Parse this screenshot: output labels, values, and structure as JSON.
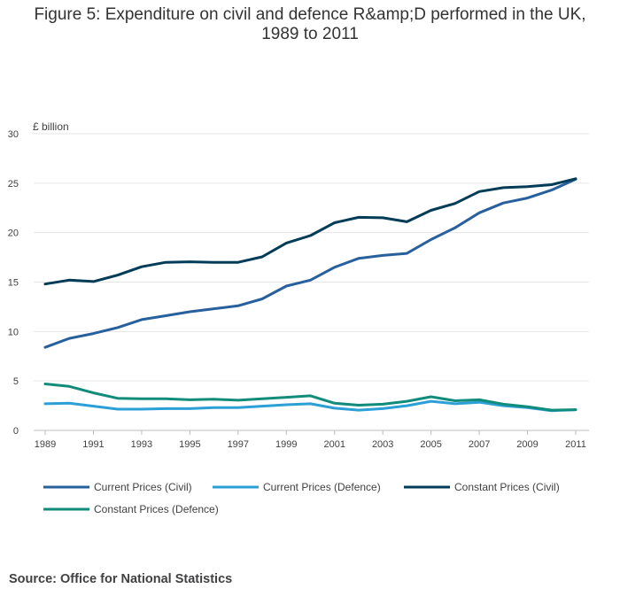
{
  "title_line1": "Figure 5: Expenditure on civil and defence R&amp;D performed in the UK,",
  "title_line2": "1989 to 2011",
  "source": "Source: Office for National Statistics",
  "chart_data": {
    "type": "line",
    "ylabel": "£ billion",
    "ylim": [
      0,
      30
    ],
    "yticks": [
      0,
      5,
      10,
      15,
      20,
      25,
      30
    ],
    "xlim": [
      1989,
      2011
    ],
    "xticks": [
      1989,
      1991,
      1993,
      1995,
      1997,
      1999,
      2001,
      2003,
      2005,
      2007,
      2009,
      2011
    ],
    "grid": "horizontal",
    "legend_position": "bottom",
    "x": [
      1989,
      1990,
      1991,
      1992,
      1993,
      1994,
      1995,
      1996,
      1997,
      1998,
      1999,
      2000,
      2001,
      2002,
      2003,
      2004,
      2005,
      2006,
      2007,
      2008,
      2009,
      2010,
      2011
    ],
    "series": [
      {
        "name": "Current Prices (Civil)",
        "color": "#27609c",
        "values": [
          8.4,
          9.3,
          9.8,
          10.4,
          11.2,
          11.6,
          12.0,
          12.3,
          12.6,
          13.3,
          14.6,
          15.2,
          16.5,
          17.4,
          17.7,
          17.9,
          19.3,
          20.5,
          22.0,
          23.0,
          23.5,
          24.3,
          25.4
        ]
      },
      {
        "name": "Current Prices (Defence)",
        "color": "#2b9fd6",
        "values": [
          2.7,
          2.75,
          2.45,
          2.15,
          2.15,
          2.2,
          2.2,
          2.3,
          2.3,
          2.45,
          2.6,
          2.7,
          2.25,
          2.05,
          2.2,
          2.5,
          2.95,
          2.7,
          2.85,
          2.5,
          2.3,
          2.0,
          2.1
        ]
      },
      {
        "name": "Constant Prices (Civil)",
        "color": "#003c57",
        "values": [
          14.8,
          15.2,
          15.05,
          15.7,
          16.55,
          17.0,
          17.05,
          17.0,
          17.0,
          17.55,
          18.95,
          19.7,
          21.0,
          21.55,
          21.5,
          21.1,
          22.25,
          22.95,
          24.15,
          24.55,
          24.65,
          24.85,
          25.45
        ]
      },
      {
        "name": "Constant Prices (Defence)",
        "color": "#118c7b",
        "values": [
          4.7,
          4.45,
          3.8,
          3.25,
          3.2,
          3.2,
          3.1,
          3.15,
          3.05,
          3.2,
          3.35,
          3.5,
          2.75,
          2.55,
          2.65,
          2.95,
          3.4,
          3.0,
          3.1,
          2.65,
          2.4,
          2.05,
          2.1
        ]
      }
    ]
  }
}
